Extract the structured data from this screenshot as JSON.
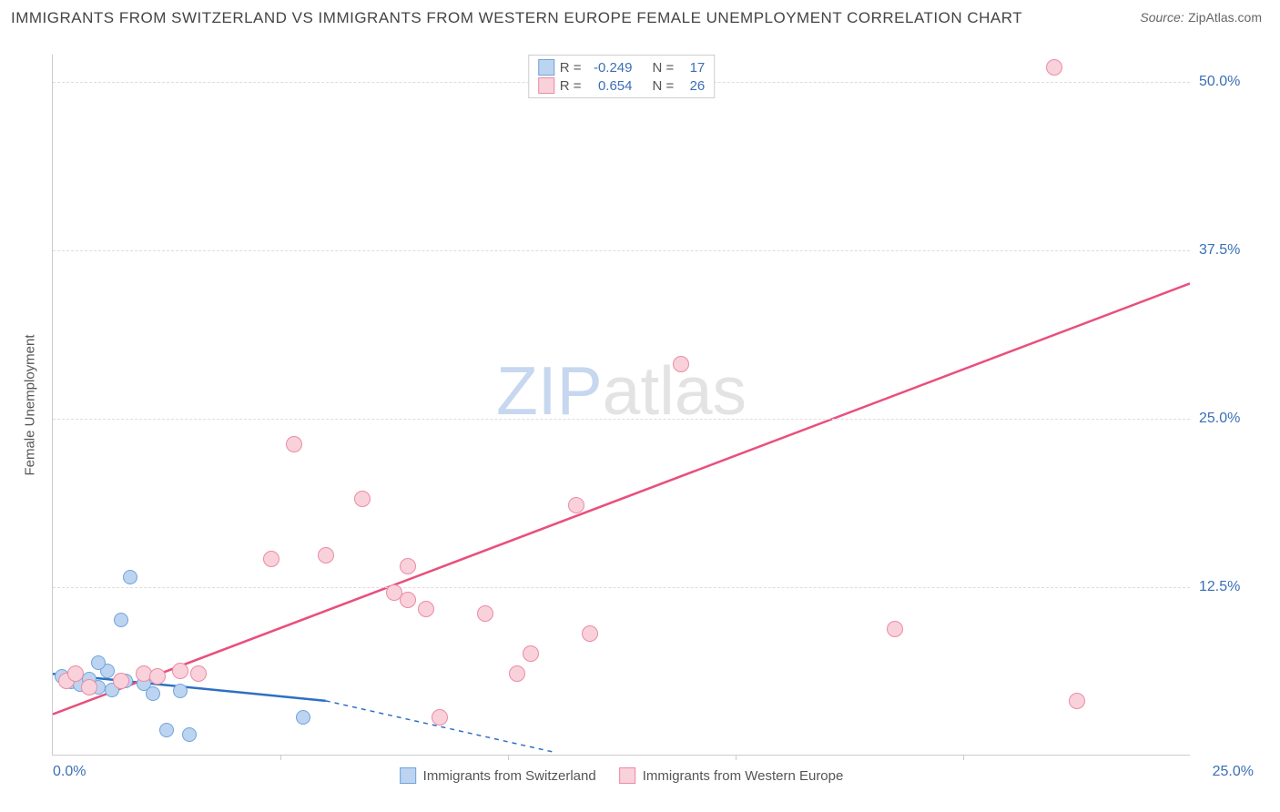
{
  "title": "IMMIGRANTS FROM SWITZERLAND VS IMMIGRANTS FROM WESTERN EUROPE FEMALE UNEMPLOYMENT CORRELATION CHART",
  "source_label": "Source:",
  "source_value": "ZipAtlas.com",
  "y_axis_label": "Female Unemployment",
  "watermark_a": "ZIP",
  "watermark_b": "atlas",
  "colors": {
    "blue_fill": "#bcd4f0",
    "blue_stroke": "#6fa3db",
    "blue_line": "#2f6fc2",
    "pink_fill": "#f9d1db",
    "pink_stroke": "#ec8ba5",
    "pink_line": "#e94f7c",
    "tick_text": "#3b6fb6",
    "grid": "#dddddd"
  },
  "correlation_legend": {
    "r_label": "R =",
    "n_label": "N =",
    "rows": [
      {
        "swatch_fill": "#bcd4f0",
        "swatch_stroke": "#6fa3db",
        "r": "-0.249",
        "n": "17"
      },
      {
        "swatch_fill": "#f9d1db",
        "swatch_stroke": "#ec8ba5",
        "r": "0.654",
        "n": "26"
      }
    ]
  },
  "bottom_legend": [
    {
      "swatch_fill": "#bcd4f0",
      "swatch_stroke": "#6fa3db",
      "label": "Immigrants from Switzerland"
    },
    {
      "swatch_fill": "#f9d1db",
      "swatch_stroke": "#ec8ba5",
      "label": "Immigrants from Western Europe"
    }
  ],
  "x_range": [
    0,
    25
  ],
  "y_range": [
    0,
    52
  ],
  "y_ticks": [
    {
      "v": 12.5,
      "label": "12.5%"
    },
    {
      "v": 25.0,
      "label": "25.0%"
    },
    {
      "v": 37.5,
      "label": "37.5%"
    },
    {
      "v": 50.0,
      "label": "50.0%"
    }
  ],
  "x_ticks_minor": [
    5,
    10,
    15,
    20
  ],
  "x_tick_left": "0.0%",
  "x_tick_right": "25.0%",
  "series": [
    {
      "name": "switzerland",
      "fill": "#bcd4f0",
      "stroke": "#6fa3db",
      "r": 8,
      "points": [
        [
          0.2,
          5.8
        ],
        [
          0.4,
          5.4
        ],
        [
          0.6,
          5.2
        ],
        [
          0.8,
          5.6
        ],
        [
          1.0,
          5.0
        ],
        [
          1.2,
          6.2
        ],
        [
          1.3,
          4.8
        ],
        [
          1.5,
          10.0
        ],
        [
          1.6,
          5.5
        ],
        [
          1.7,
          13.2
        ],
        [
          2.0,
          5.3
        ],
        [
          2.2,
          4.5
        ],
        [
          2.5,
          1.8
        ],
        [
          2.8,
          4.7
        ],
        [
          3.0,
          1.5
        ],
        [
          5.5,
          2.8
        ],
        [
          1.0,
          6.8
        ]
      ],
      "trend": {
        "x1": 0,
        "y1": 6.0,
        "x2": 6.0,
        "y2": 4.0,
        "x2_dash": 11.0,
        "y2_dash": 0.2
      }
    },
    {
      "name": "western_europe",
      "fill": "#f9d1db",
      "stroke": "#ec8ba5",
      "r": 9,
      "points": [
        [
          0.3,
          5.5
        ],
        [
          0.5,
          6.0
        ],
        [
          0.8,
          5.0
        ],
        [
          1.5,
          5.5
        ],
        [
          2.0,
          6.0
        ],
        [
          2.3,
          5.8
        ],
        [
          2.8,
          6.2
        ],
        [
          3.2,
          6.0
        ],
        [
          4.8,
          14.5
        ],
        [
          5.3,
          23.0
        ],
        [
          6.0,
          14.8
        ],
        [
          6.8,
          19.0
        ],
        [
          7.5,
          12.0
        ],
        [
          7.8,
          11.5
        ],
        [
          7.8,
          14.0
        ],
        [
          8.2,
          10.8
        ],
        [
          8.5,
          2.8
        ],
        [
          9.5,
          10.5
        ],
        [
          10.2,
          6.0
        ],
        [
          10.5,
          7.5
        ],
        [
          11.5,
          18.5
        ],
        [
          11.8,
          9.0
        ],
        [
          13.8,
          29.0
        ],
        [
          18.5,
          9.3
        ],
        [
          22.0,
          51.0
        ],
        [
          22.5,
          4.0
        ]
      ],
      "trend": {
        "x1": 0,
        "y1": 3.0,
        "x2": 25.0,
        "y2": 35.0
      }
    }
  ]
}
